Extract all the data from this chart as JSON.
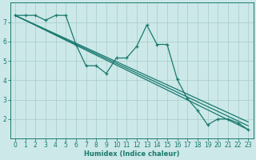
{
  "xlabel": "Humidex (Indice chaleur)",
  "bg_color": "#cce8e8",
  "grid_color": "#aed0d0",
  "line_color": "#1a7a6e",
  "xlim": [
    -0.5,
    23.5
  ],
  "ylim": [
    1.0,
    8.0
  ],
  "xticks": [
    0,
    1,
    2,
    3,
    4,
    5,
    6,
    7,
    8,
    9,
    10,
    11,
    12,
    13,
    14,
    15,
    16,
    17,
    18,
    19,
    20,
    21,
    22,
    23
  ],
  "yticks": [
    2,
    3,
    4,
    5,
    6,
    7
  ],
  "jagged_series": [
    7.35,
    7.35,
    7.35,
    7.1,
    7.35,
    7.35,
    5.85,
    4.75,
    4.75,
    4.35,
    5.15,
    5.15,
    5.75,
    6.85,
    5.85,
    5.85,
    4.05,
    3.05,
    2.45,
    1.7,
    2.0,
    2.0,
    1.8,
    1.45
  ],
  "smooth_lines": [
    {
      "x0": 0,
      "y0": 7.35,
      "x1": 23,
      "y1": 1.45
    },
    {
      "x0": 0,
      "y0": 7.35,
      "x1": 23,
      "y1": 1.65
    },
    {
      "x0": 0,
      "y0": 7.35,
      "x1": 23,
      "y1": 1.85
    }
  ]
}
